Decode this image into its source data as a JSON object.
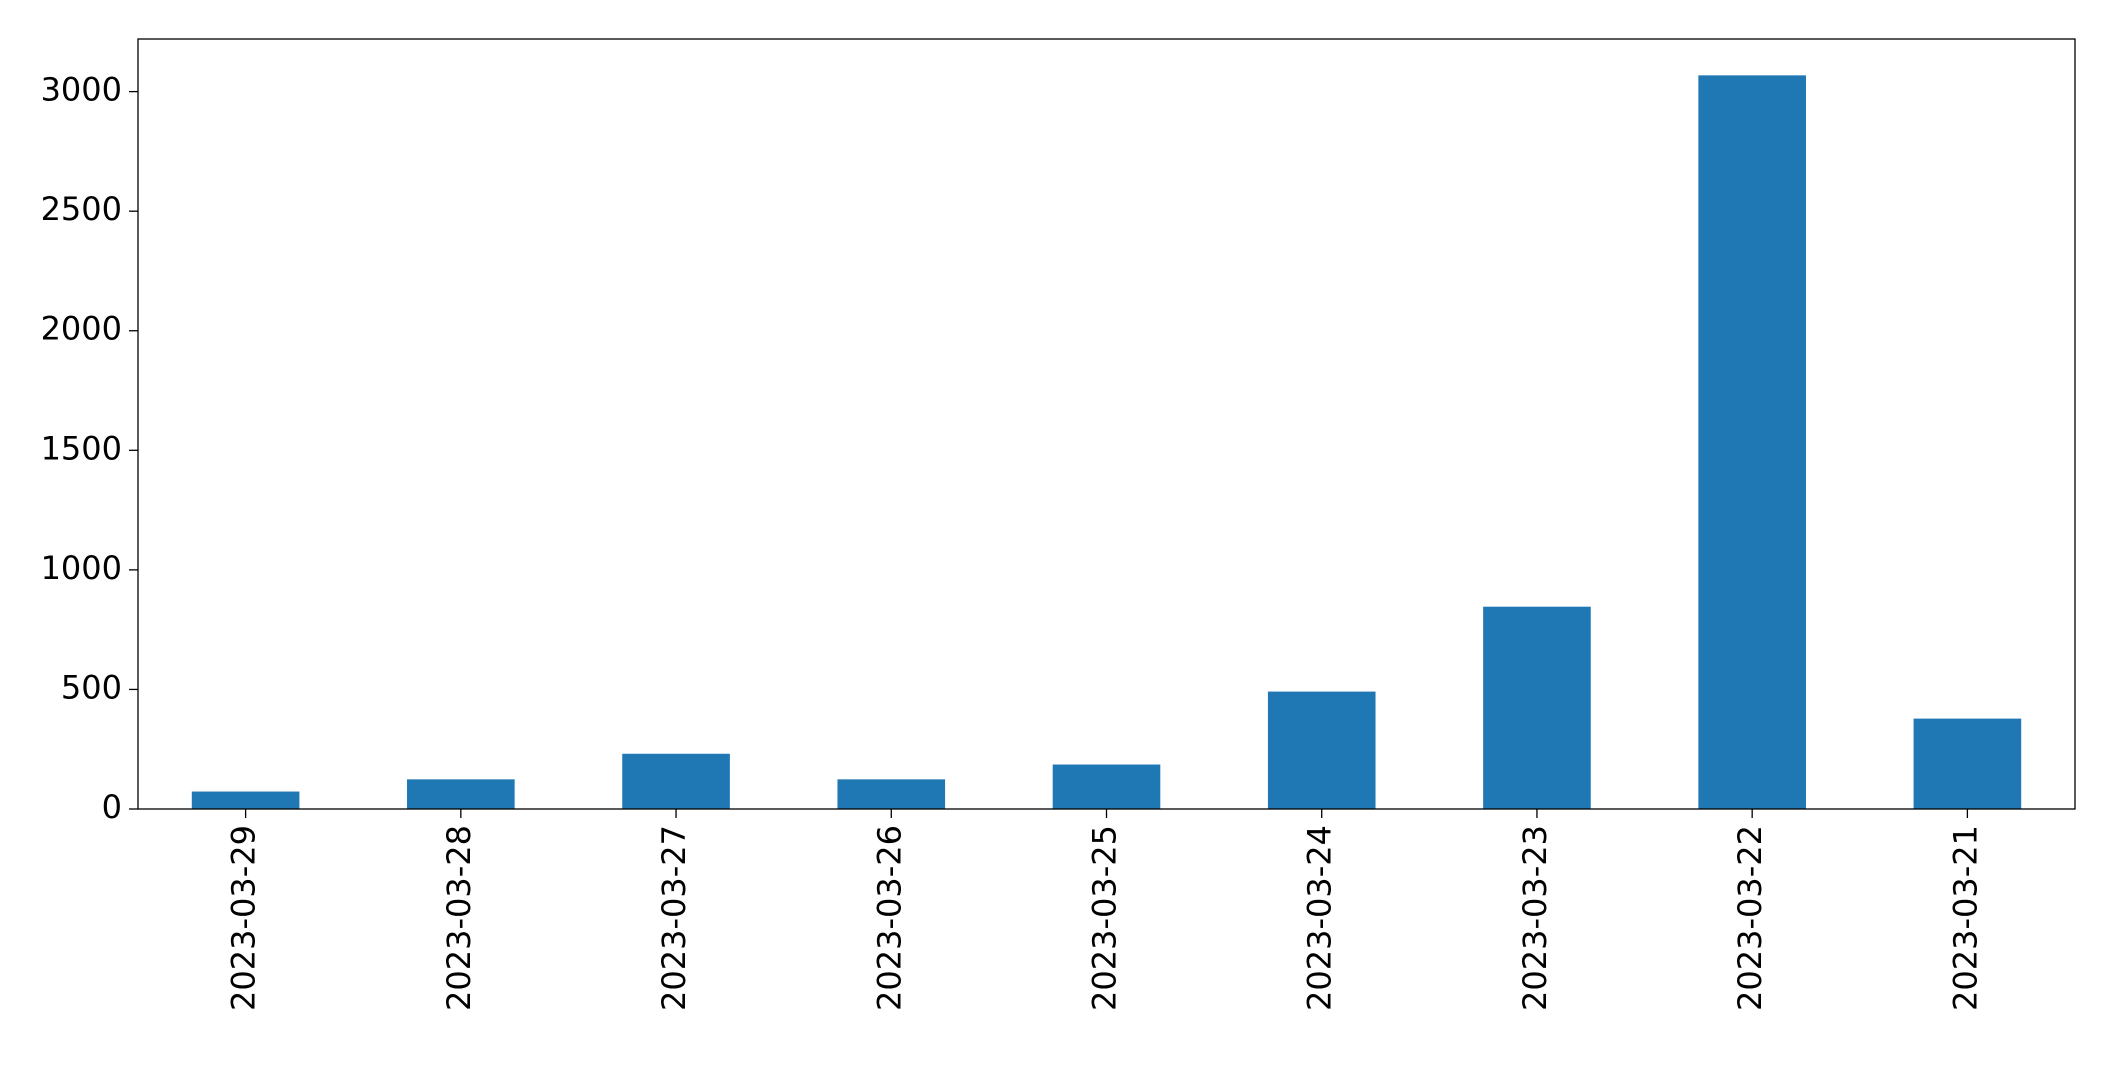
{
  "chart_data": {
    "type": "bar",
    "categories": [
      "2023-03-29",
      "2023-03-28",
      "2023-03-27",
      "2023-03-26",
      "2023-03-25",
      "2023-03-24",
      "2023-03-23",
      "2023-03-22",
      "2023-03-21"
    ],
    "values": [
      73,
      124,
      231,
      124,
      186,
      491,
      846,
      3068,
      378
    ],
    "color": "#1f77b4",
    "ylim": [
      0,
      3220
    ],
    "yticks": [
      0,
      500,
      1000,
      1500,
      2000,
      2500,
      3000
    ],
    "grid": false
  }
}
